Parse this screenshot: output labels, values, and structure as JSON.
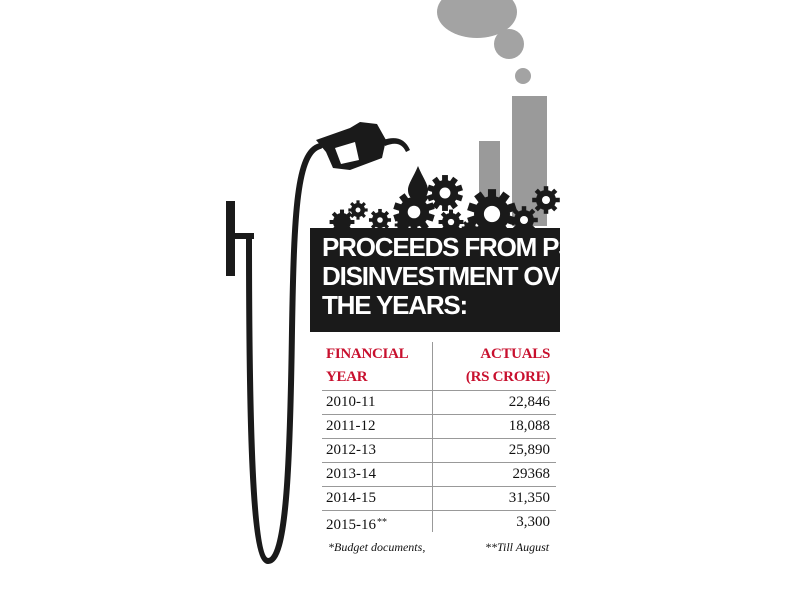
{
  "chart_data": {
    "type": "table",
    "title_lines": [
      "PROCEEDS FROM PSU",
      "DISINVESTMENT OVER",
      "THE YEARS:"
    ],
    "columns": [
      [
        "FINANCIAL",
        "YEAR"
      ],
      [
        "ACTUALS",
        "(RS CRORE)"
      ]
    ],
    "rows": [
      {
        "year": "2010-11",
        "mark": "",
        "value": "22,846"
      },
      {
        "year": "2011-12",
        "mark": "",
        "value": "18,088"
      },
      {
        "year": "2012-13",
        "mark": "",
        "value": "25,890"
      },
      {
        "year": "2013-14",
        "mark": "",
        "value": "29368"
      },
      {
        "year": "2014-15",
        "mark": "",
        "value": "31,350"
      },
      {
        "year": "2015-16",
        "mark": "**",
        "value": "3,300"
      }
    ],
    "footnotes": [
      "*Budget documents,",
      "**Till August"
    ]
  },
  "colors": {
    "header_red": "#c8102e",
    "title_bg": "#1a1a1a",
    "smoke_gray": "#9a9a9a",
    "ink": "#111111"
  },
  "icons": [
    "fuel-pump-nozzle-icon",
    "gear-icon",
    "chimney-icon",
    "smoke-icon",
    "fuel-drop-icon"
  ]
}
